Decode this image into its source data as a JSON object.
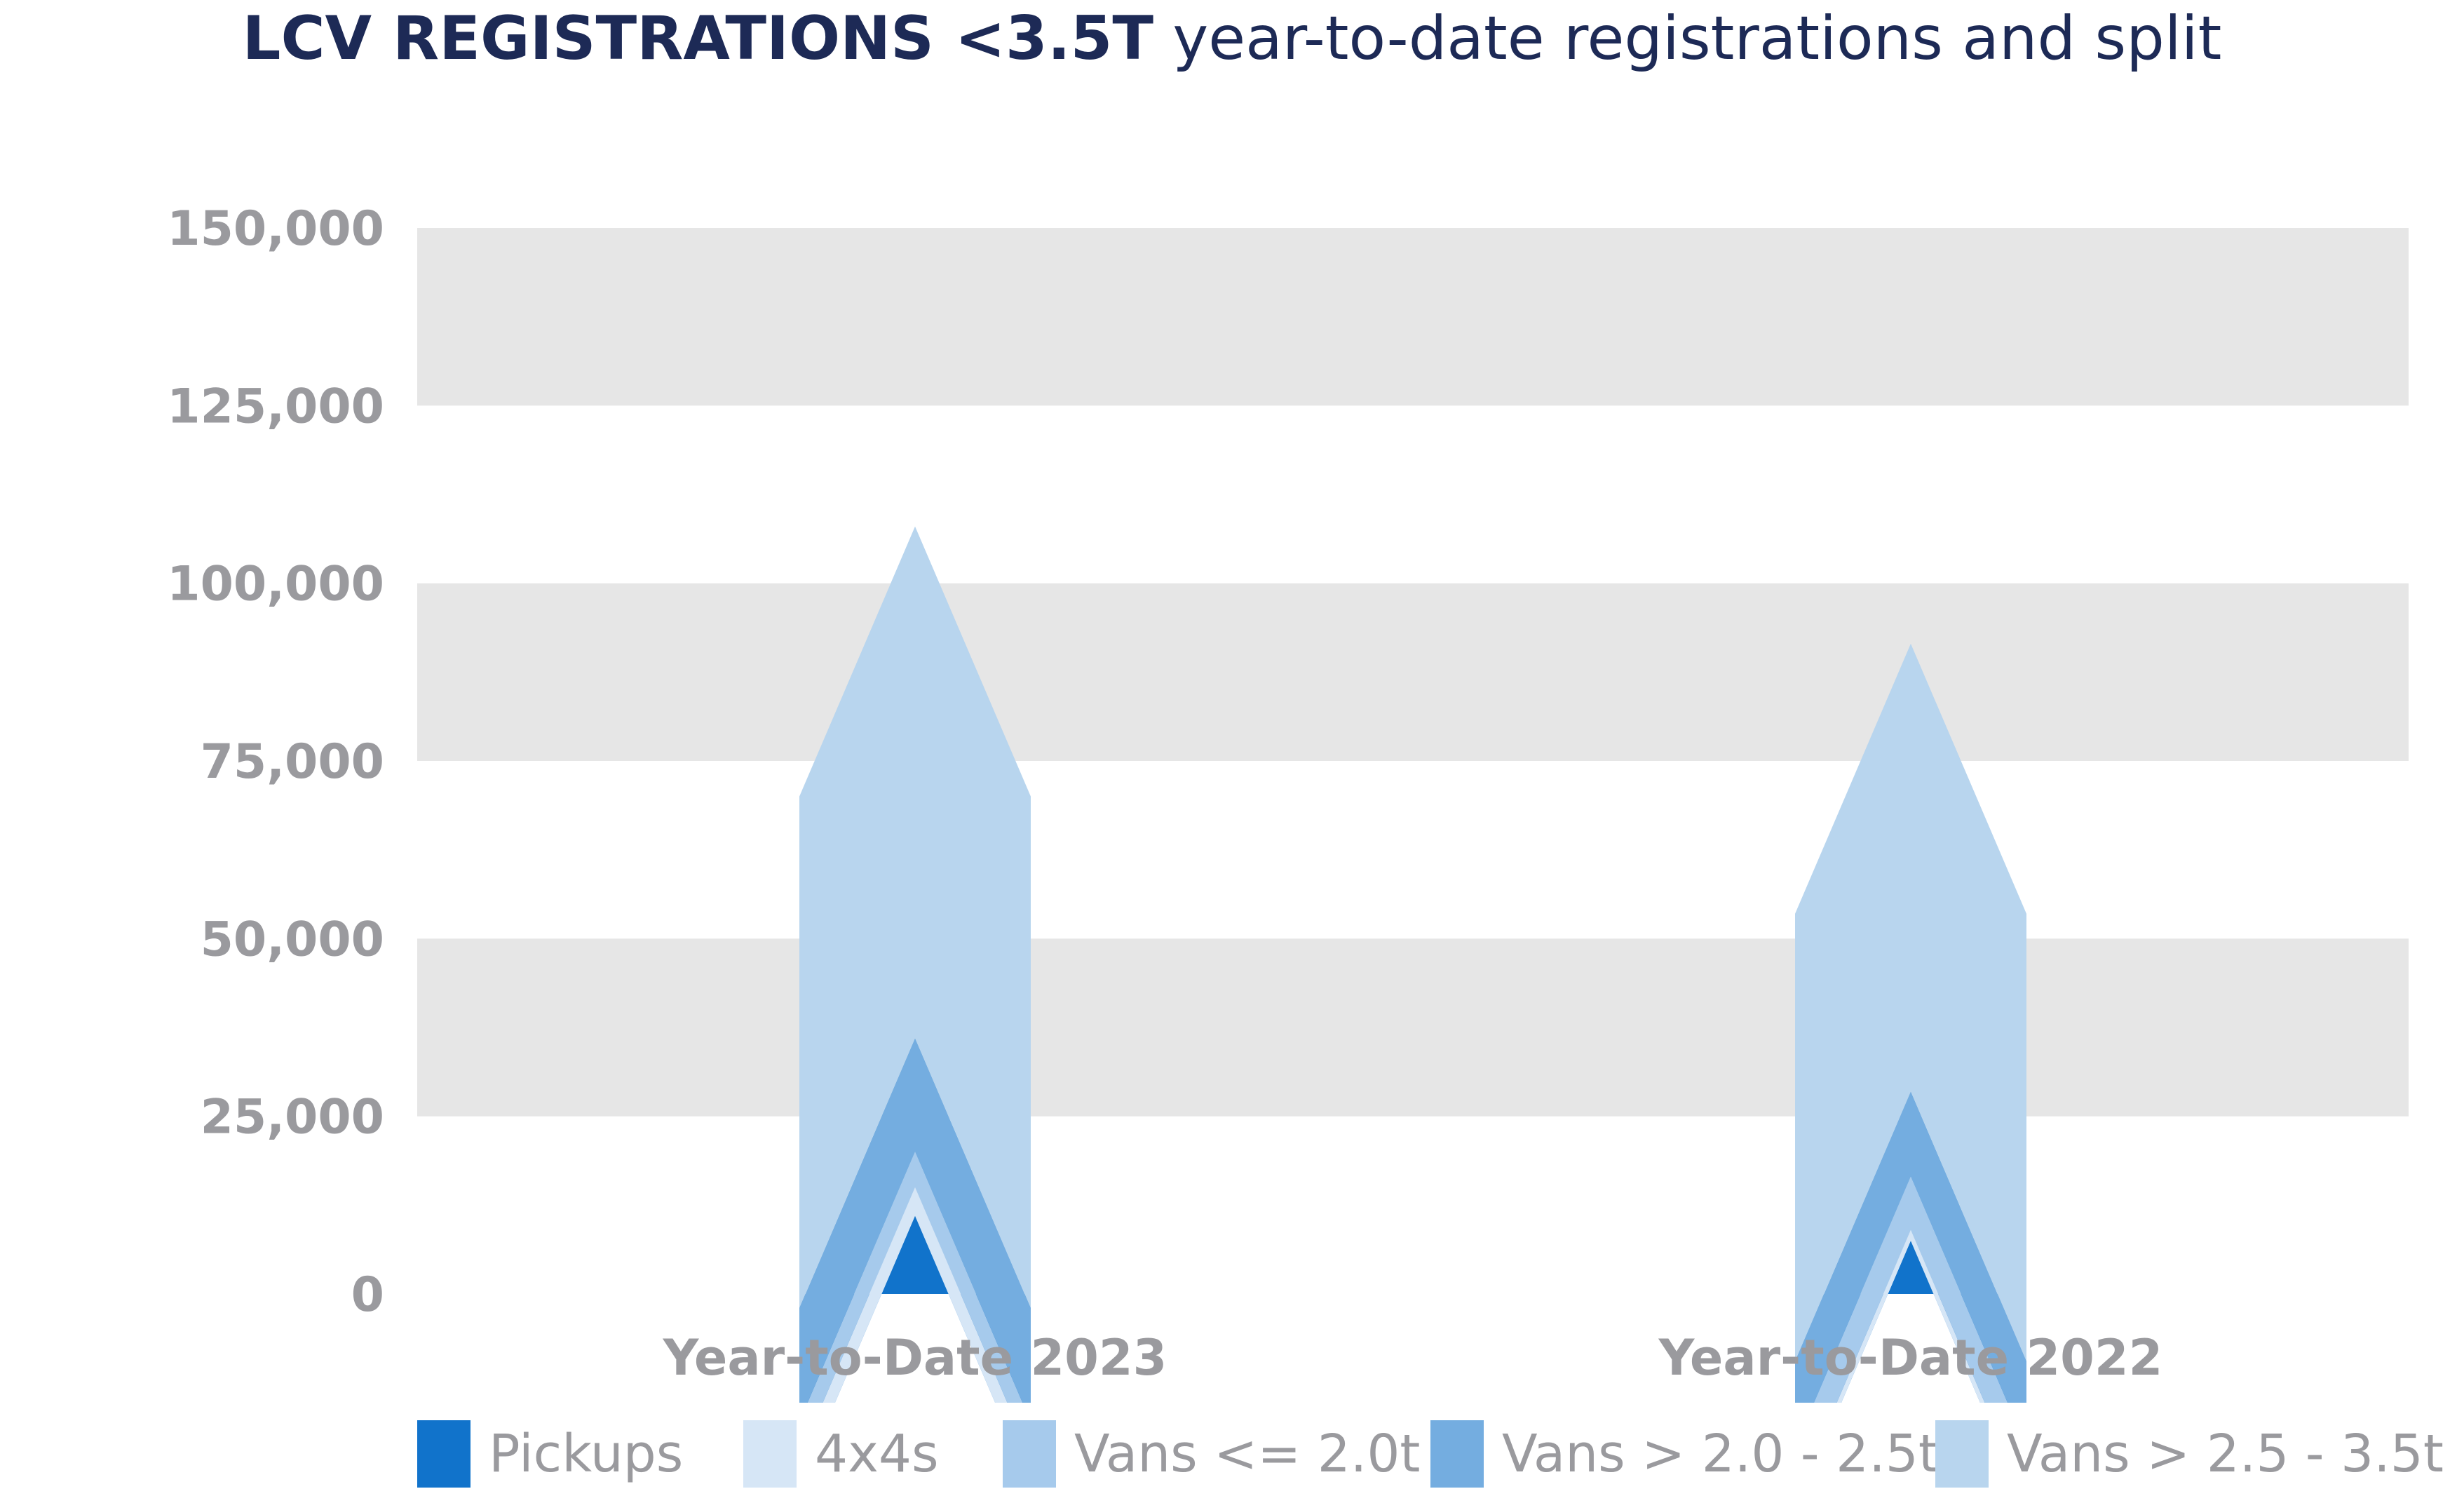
{
  "title": {
    "bold": "LCV REGISTRATIONS <3.5T",
    "light": "year-to-date registrations and split"
  },
  "chart_data": {
    "type": "bar",
    "title": "LCV REGISTRATIONS <3.5T year-to-date registrations and split",
    "categories": [
      "Year-to-Date 2023",
      "Year-to-Date 2022"
    ],
    "series": [
      {
        "name": "Pickups",
        "color": "#1173cb",
        "values": [
          11000,
          7500
        ]
      },
      {
        "name": "4x4s",
        "color": "#d6e6f6",
        "values": [
          4000,
          1500
        ]
      },
      {
        "name": "Vans <= 2.0t",
        "color": "#a6caec",
        "values": [
          5000,
          7500
        ]
      },
      {
        "name": "Vans > 2.0 - 2.5t",
        "color": "#74ade0",
        "values": [
          16000,
          12000
        ]
      },
      {
        "name": "Vans > 2.5 - 3.5t",
        "color": "#b8d5ee",
        "values": [
          72000,
          63000
        ]
      }
    ],
    "yticks": [
      "0",
      "25,000",
      "50,000",
      "75,000",
      "100,000",
      "125,000",
      "150,000"
    ],
    "ylim": [
      0,
      150000
    ],
    "grid": "alternating bands",
    "legend_position": "bottom",
    "xlabel": "",
    "ylabel": ""
  }
}
